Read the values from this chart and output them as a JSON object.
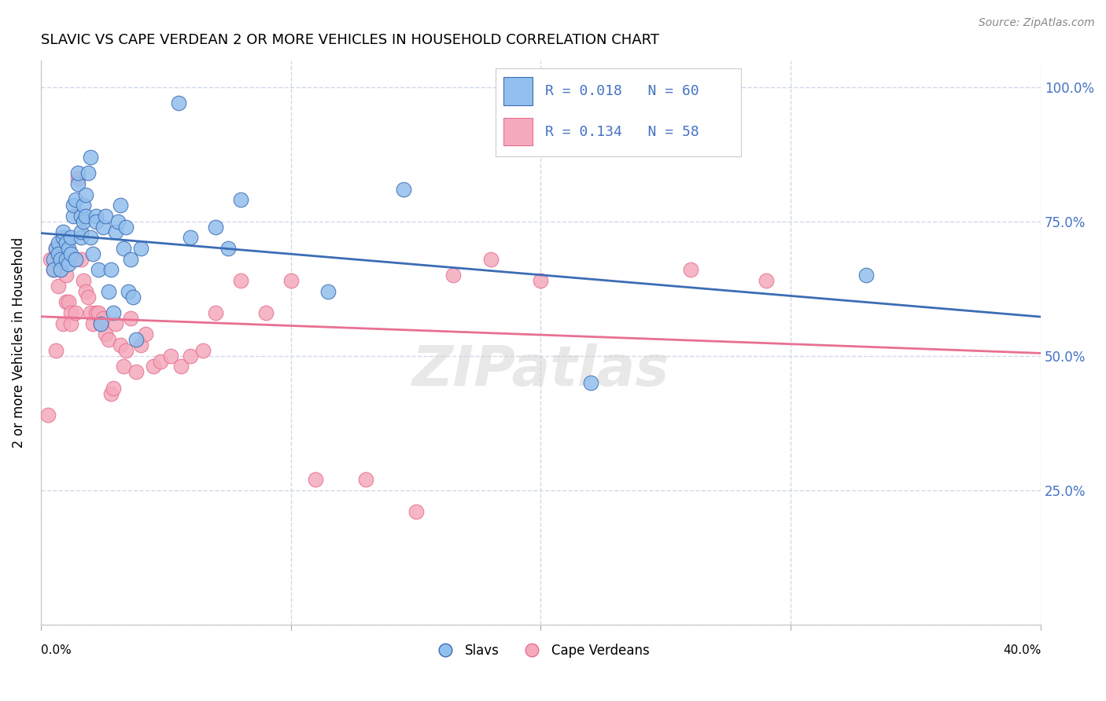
{
  "title": "SLAVIC VS CAPE VERDEAN 2 OR MORE VEHICLES IN HOUSEHOLD CORRELATION CHART",
  "source": "Source: ZipAtlas.com",
  "ylabel": "2 or more Vehicles in Household",
  "yticks": [
    0.0,
    0.25,
    0.5,
    0.75,
    1.0
  ],
  "ytick_labels": [
    "",
    "25.0%",
    "50.0%",
    "75.0%",
    "100.0%"
  ],
  "xmin": 0.0,
  "xmax": 0.4,
  "ymin": 0.0,
  "ymax": 1.05,
  "legend_blue_r": "R = 0.018",
  "legend_blue_n": "N = 60",
  "legend_pink_r": "R = 0.134",
  "legend_pink_n": "N = 58",
  "blue_color": "#92BFED",
  "pink_color": "#F4AABC",
  "blue_line_color": "#3B6DB5",
  "pink_line_color": "#E87092",
  "axis_label_color": "#4472C4",
  "slavs_x": [
    0.005,
    0.005,
    0.006,
    0.007,
    0.007,
    0.008,
    0.008,
    0.009,
    0.009,
    0.01,
    0.01,
    0.011,
    0.011,
    0.012,
    0.012,
    0.013,
    0.013,
    0.014,
    0.014,
    0.015,
    0.015,
    0.016,
    0.016,
    0.016,
    0.017,
    0.017,
    0.018,
    0.018,
    0.019,
    0.02,
    0.02,
    0.021,
    0.022,
    0.022,
    0.023,
    0.024,
    0.025,
    0.026,
    0.027,
    0.028,
    0.029,
    0.03,
    0.031,
    0.032,
    0.033,
    0.034,
    0.035,
    0.036,
    0.037,
    0.038,
    0.04,
    0.055,
    0.06,
    0.07,
    0.075,
    0.08,
    0.115,
    0.145,
    0.22,
    0.33
  ],
  "slavs_y": [
    0.68,
    0.66,
    0.7,
    0.71,
    0.69,
    0.68,
    0.66,
    0.72,
    0.73,
    0.68,
    0.71,
    0.7,
    0.67,
    0.69,
    0.72,
    0.76,
    0.78,
    0.68,
    0.79,
    0.82,
    0.84,
    0.72,
    0.76,
    0.73,
    0.78,
    0.75,
    0.76,
    0.8,
    0.84,
    0.87,
    0.72,
    0.69,
    0.76,
    0.75,
    0.66,
    0.56,
    0.74,
    0.76,
    0.62,
    0.66,
    0.58,
    0.73,
    0.75,
    0.78,
    0.7,
    0.74,
    0.62,
    0.68,
    0.61,
    0.53,
    0.7,
    0.97,
    0.72,
    0.74,
    0.7,
    0.79,
    0.62,
    0.81,
    0.45,
    0.65
  ],
  "cape_x": [
    0.003,
    0.004,
    0.005,
    0.006,
    0.006,
    0.007,
    0.007,
    0.008,
    0.008,
    0.009,
    0.01,
    0.01,
    0.011,
    0.012,
    0.012,
    0.013,
    0.014,
    0.015,
    0.016,
    0.017,
    0.018,
    0.019,
    0.02,
    0.021,
    0.022,
    0.023,
    0.024,
    0.025,
    0.026,
    0.027,
    0.028,
    0.029,
    0.03,
    0.032,
    0.033,
    0.034,
    0.036,
    0.038,
    0.04,
    0.042,
    0.045,
    0.048,
    0.052,
    0.056,
    0.06,
    0.065,
    0.07,
    0.08,
    0.09,
    0.1,
    0.11,
    0.13,
    0.15,
    0.165,
    0.18,
    0.2,
    0.26,
    0.29
  ],
  "cape_y": [
    0.39,
    0.68,
    0.66,
    0.7,
    0.51,
    0.68,
    0.63,
    0.68,
    0.66,
    0.56,
    0.65,
    0.6,
    0.6,
    0.58,
    0.56,
    0.68,
    0.58,
    0.83,
    0.68,
    0.64,
    0.62,
    0.61,
    0.58,
    0.56,
    0.58,
    0.58,
    0.56,
    0.57,
    0.54,
    0.53,
    0.43,
    0.44,
    0.56,
    0.52,
    0.48,
    0.51,
    0.57,
    0.47,
    0.52,
    0.54,
    0.48,
    0.49,
    0.5,
    0.48,
    0.5,
    0.51,
    0.58,
    0.64,
    0.58,
    0.64,
    0.27,
    0.27,
    0.21,
    0.65,
    0.68,
    0.64,
    0.66,
    0.64
  ],
  "watermark": "ZIPatlas",
  "background_color": "#FFFFFF",
  "grid_color": "#D0D8E8"
}
